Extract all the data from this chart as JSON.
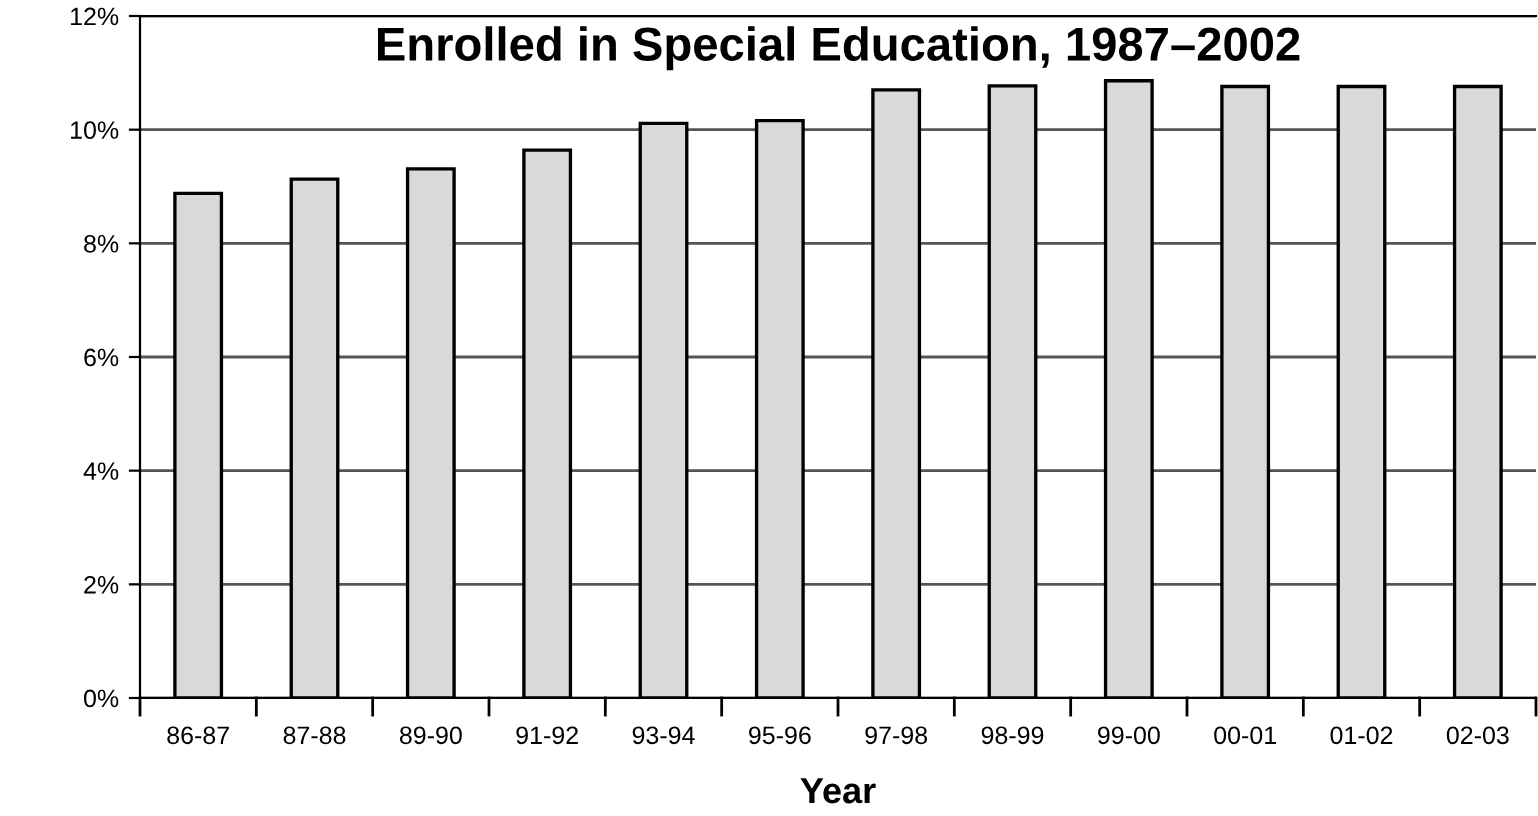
{
  "chart_data": {
    "type": "bar",
    "title": "Enrolled in Special Education, 1987–2002",
    "xlabel": "Year",
    "categories": [
      "86-87",
      "87-88",
      "89-90",
      "91-92",
      "93-94",
      "95-96",
      "97-98",
      "98-99",
      "99-00",
      "00-01",
      "01-02",
      "02-03"
    ],
    "values": [
      8.88,
      9.13,
      9.31,
      9.64,
      10.11,
      10.16,
      10.7,
      10.77,
      10.86,
      10.76,
      10.76,
      10.76
    ],
    "color": "#d9d9d9",
    "ylim": [
      0,
      12
    ],
    "yticks": [
      {
        "value": 0,
        "label": "0%"
      },
      {
        "value": 2,
        "label": "2%"
      },
      {
        "value": 4,
        "label": "4%"
      },
      {
        "value": 6,
        "label": "6%"
      },
      {
        "value": 8,
        "label": "8%"
      },
      {
        "value": 10,
        "label": "10%"
      },
      {
        "value": 12,
        "label": "12%"
      }
    ],
    "grid": "y",
    "legend": false
  }
}
